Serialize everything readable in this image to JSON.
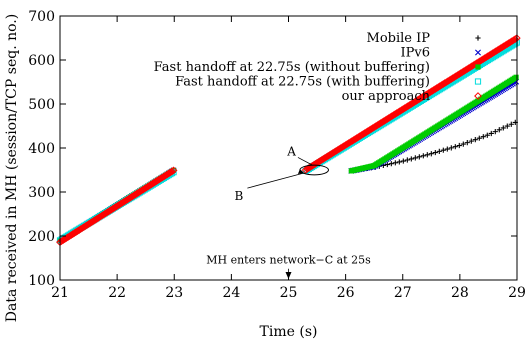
{
  "chart_data": {
    "type": "scatter",
    "xlabel": "Time (s)",
    "ylabel": "Data received in MH (session/TCP seq. no.)",
    "xlim": [
      21,
      29
    ],
    "ylim": [
      100,
      700
    ],
    "xticks": [
      21,
      22,
      23,
      24,
      25,
      26,
      27,
      28,
      29
    ],
    "yticks": [
      100,
      200,
      300,
      400,
      500,
      600,
      700
    ],
    "grid": false,
    "legend_position": "top-right",
    "series": [
      {
        "name": "Mobile IP",
        "color": "#000000",
        "marker": "plus",
        "segments": [
          {
            "x": [
              21.0,
              23.0
            ],
            "y": [
              190,
              350
            ]
          },
          {
            "x": [
              26.1,
              26.5,
              27.0,
              27.5,
              28.0,
              28.5,
              29.0
            ],
            "y": [
              348,
              356,
              370,
              387,
              406,
              430,
              460
            ]
          }
        ]
      },
      {
        "name": "IPv6",
        "color": "#0000cc",
        "marker": "x",
        "segments": [
          {
            "x": [
              21.0,
              23.0
            ],
            "y": [
              190,
              350
            ]
          },
          {
            "x": [
              26.1,
              26.5,
              29.0
            ],
            "y": [
              348,
              358,
              552
            ]
          }
        ]
      },
      {
        "name": "Fast handoff at 22.75s (without buffering)",
        "color": "#00cc00",
        "marker": "square-filled",
        "segments": [
          {
            "x": [
              21.0,
              23.0
            ],
            "y": [
              190,
              350
            ]
          },
          {
            "x": [
              26.1,
              26.5,
              29.0
            ],
            "y": [
              348,
              360,
              562
            ]
          }
        ]
      },
      {
        "name": "Fast handoff at 22.75s (with buffering)",
        "color": "#00dddd",
        "marker": "square-open",
        "segments": [
          {
            "x": [
              21.0,
              23.0
            ],
            "y": [
              190,
              346
            ]
          },
          {
            "x": [
              25.3,
              29.0
            ],
            "y": [
              348,
              640
            ]
          }
        ]
      },
      {
        "name": "our approach",
        "color": "#ff0000",
        "marker": "diamond",
        "segments": [
          {
            "x": [
              21.0,
              23.0
            ],
            "y": [
              186,
              350
            ]
          },
          {
            "x": [
              25.3,
              29.0
            ],
            "y": [
              350,
              650
            ]
          }
        ]
      }
    ],
    "annotations": [
      {
        "text": "A",
        "x": 25.2,
        "y": 374
      },
      {
        "text": "B",
        "x": 24.35,
        "y": 318
      },
      {
        "text": "MH enters network−C at 25s",
        "x": 25.0,
        "y": 137
      }
    ],
    "ellipse": {
      "cx": 25.45,
      "cy": 350,
      "rx": 0.25,
      "ry": 11
    }
  }
}
